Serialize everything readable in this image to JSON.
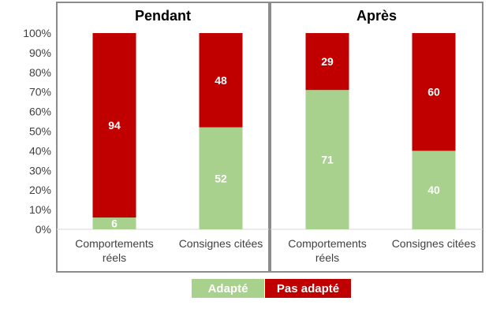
{
  "chart_data": {
    "type": "bar",
    "stacked": true,
    "percent": true,
    "ylim": [
      0,
      100
    ],
    "yticks": [
      "0%",
      "10%",
      "20%",
      "30%",
      "40%",
      "50%",
      "60%",
      "70%",
      "80%",
      "90%",
      "100%"
    ],
    "grid": false,
    "legend_position": "bottom",
    "colors": {
      "Adapté": "#a9d18e",
      "Pas adapté": "#c00000"
    },
    "legend": [
      "Adapté",
      "Pas adapté"
    ],
    "panels": [
      {
        "title": "Pendant",
        "categories": [
          [
            "Comportements",
            "réels"
          ],
          [
            "Consignes citées"
          ]
        ],
        "series": [
          {
            "name": "Adapté",
            "values": [
              6,
              52
            ]
          },
          {
            "name": "Pas adapté",
            "values": [
              94,
              48
            ]
          }
        ]
      },
      {
        "title": "Après",
        "categories": [
          [
            "Comportements",
            "réels"
          ],
          [
            "Consignes citées"
          ]
        ],
        "series": [
          {
            "name": "Adapté",
            "values": [
              71,
              40
            ]
          },
          {
            "name": "Pas adapté",
            "values": [
              29,
              60
            ]
          }
        ]
      }
    ]
  }
}
